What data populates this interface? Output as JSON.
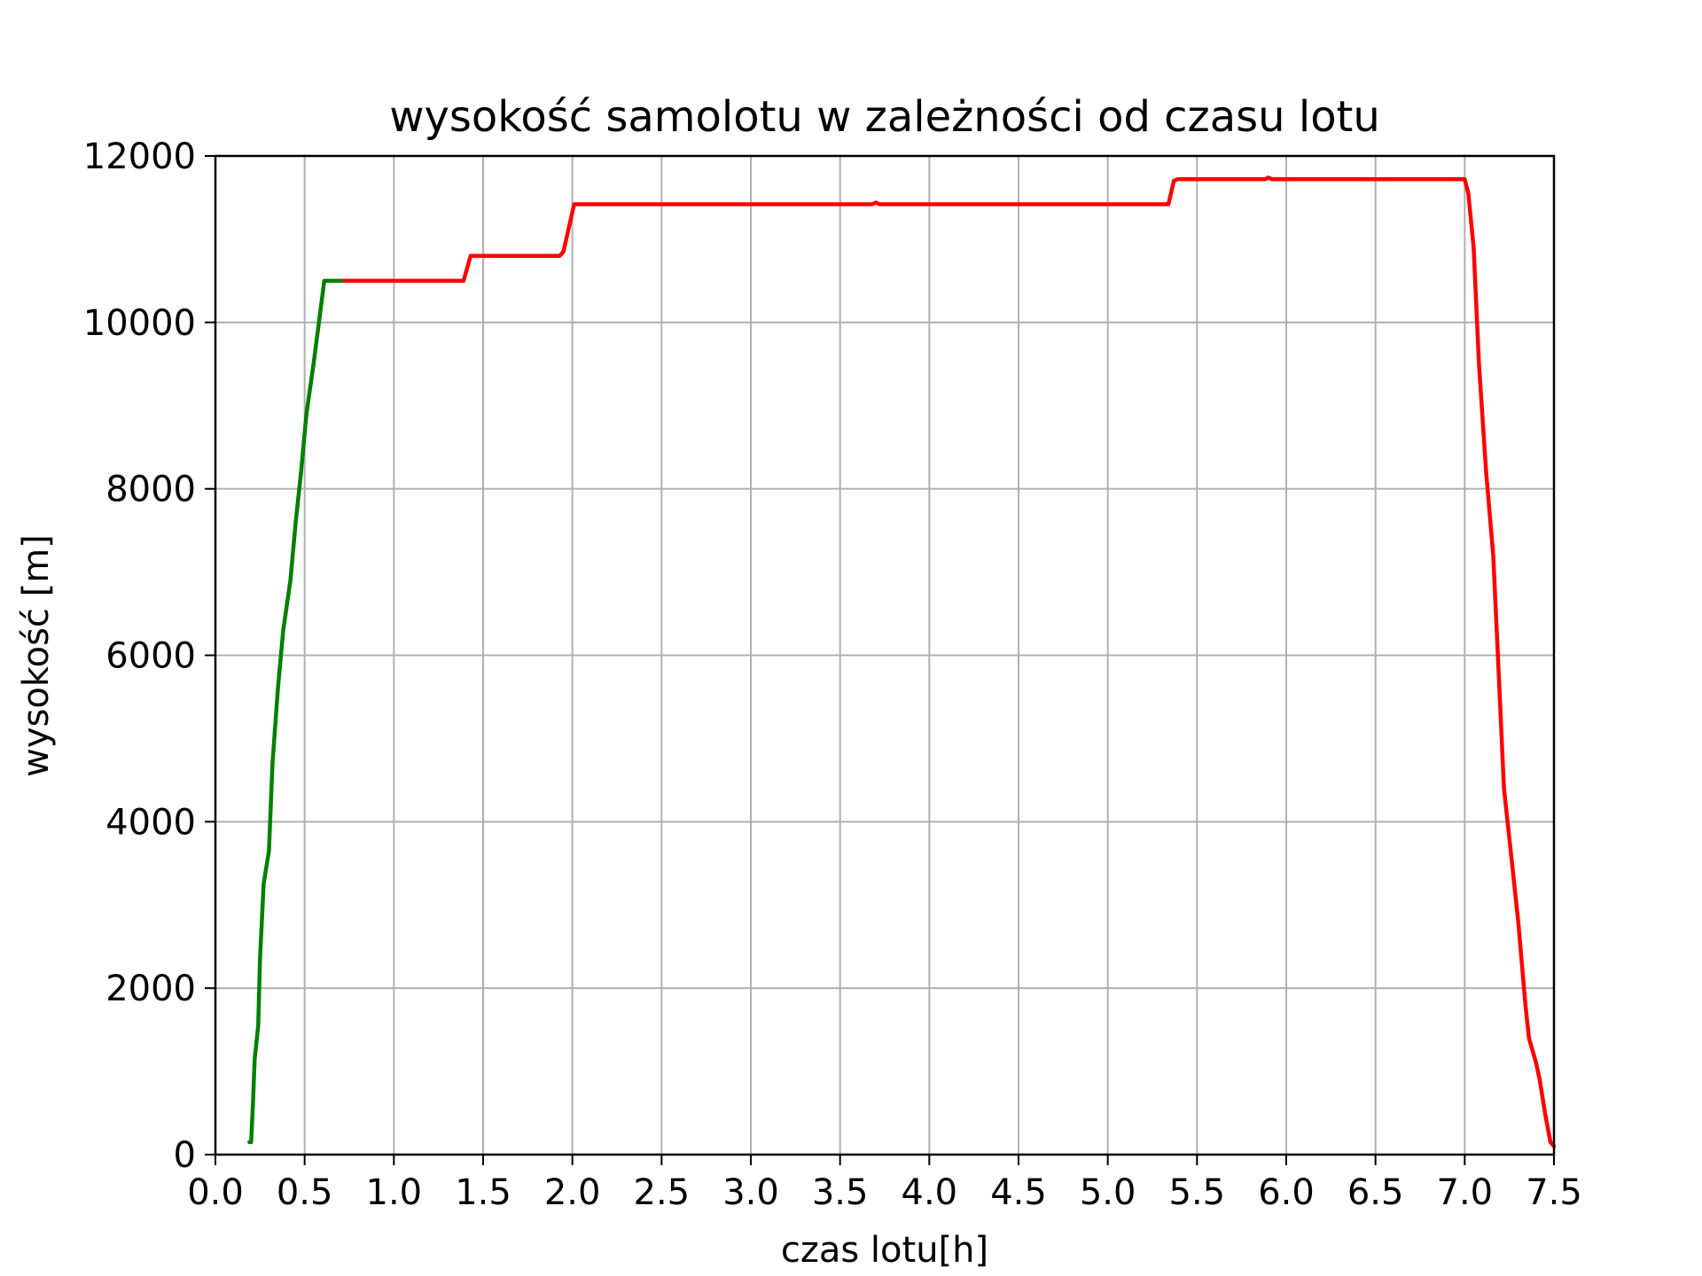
{
  "chart_data": {
    "type": "line",
    "title": "wysokość samolotu w zależności od czasu lotu",
    "xlabel": "czas lotu[h]",
    "ylabel": "wysokość [m]",
    "xlim": [
      0,
      7.5
    ],
    "ylim": [
      0,
      12000
    ],
    "xticks": [
      "0.0",
      "0.5",
      "1.0",
      "1.5",
      "2.0",
      "2.5",
      "3.0",
      "3.5",
      "4.0",
      "4.5",
      "5.0",
      "5.5",
      "6.0",
      "6.5",
      "7.0",
      "7.5"
    ],
    "yticks": [
      "0",
      "2000",
      "4000",
      "6000",
      "8000",
      "10000",
      "12000"
    ],
    "grid": true,
    "legend": "none",
    "series": [
      {
        "color": "#008000",
        "points": [
          [
            0.19,
            150
          ],
          [
            0.2,
            150
          ],
          [
            0.21,
            600
          ],
          [
            0.22,
            1150
          ],
          [
            0.24,
            1550
          ],
          [
            0.25,
            2350
          ],
          [
            0.27,
            3250
          ],
          [
            0.3,
            3650
          ],
          [
            0.32,
            4700
          ],
          [
            0.35,
            5600
          ],
          [
            0.38,
            6300
          ],
          [
            0.42,
            6900
          ],
          [
            0.45,
            7600
          ],
          [
            0.48,
            8200
          ],
          [
            0.51,
            8900
          ],
          [
            0.55,
            9500
          ],
          [
            0.58,
            10000
          ],
          [
            0.61,
            10500
          ],
          [
            0.65,
            10500
          ],
          [
            0.72,
            10500
          ]
        ]
      },
      {
        "color": "#ff0000",
        "points": [
          [
            0.72,
            10500
          ],
          [
            1.39,
            10500
          ],
          [
            1.43,
            10800
          ],
          [
            1.93,
            10800
          ],
          [
            1.95,
            10850
          ],
          [
            2.01,
            11420
          ],
          [
            3.68,
            11420
          ],
          [
            3.7,
            11440
          ],
          [
            3.72,
            11420
          ],
          [
            5.34,
            11420
          ],
          [
            5.37,
            11700
          ],
          [
            5.39,
            11720
          ],
          [
            5.88,
            11720
          ],
          [
            5.9,
            11740
          ],
          [
            5.92,
            11720
          ],
          [
            7.0,
            11720
          ],
          [
            7.02,
            11550
          ],
          [
            7.05,
            10900
          ],
          [
            7.08,
            9500
          ],
          [
            7.12,
            8200
          ],
          [
            7.16,
            7200
          ],
          [
            7.19,
            5800
          ],
          [
            7.22,
            4400
          ],
          [
            7.26,
            3600
          ],
          [
            7.3,
            2800
          ],
          [
            7.34,
            1800
          ],
          [
            7.36,
            1400
          ],
          [
            7.4,
            1100
          ],
          [
            7.42,
            900
          ],
          [
            7.45,
            500
          ],
          [
            7.48,
            150
          ],
          [
            7.5,
            100
          ]
        ]
      }
    ]
  }
}
